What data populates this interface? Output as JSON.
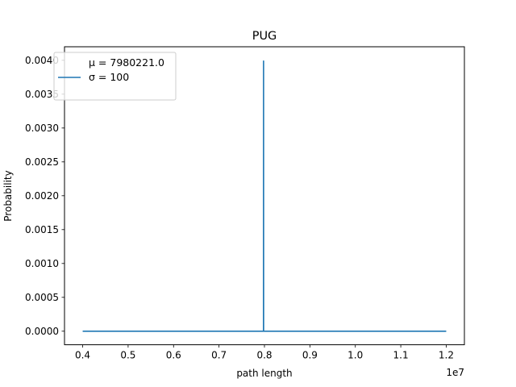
{
  "chart_data": {
    "type": "line",
    "title": "PUG",
    "xlabel": "path length",
    "ylabel": "Probability",
    "x_offset_label": "1e7",
    "xlim": [
      3600000,
      12400000
    ],
    "ylim": [
      -0.0002,
      0.0042
    ],
    "x_ticks": [
      {
        "value": 4000000,
        "label": "0.4"
      },
      {
        "value": 5000000,
        "label": "0.5"
      },
      {
        "value": 6000000,
        "label": "0.6"
      },
      {
        "value": 7000000,
        "label": "0.7"
      },
      {
        "value": 8000000,
        "label": "0.8"
      },
      {
        "value": 9000000,
        "label": "0.9"
      },
      {
        "value": 10000000,
        "label": "1.0"
      },
      {
        "value": 11000000,
        "label": "1.1"
      },
      {
        "value": 12000000,
        "label": "1.2"
      }
    ],
    "y_ticks": [
      {
        "value": 0.0,
        "label": "0.0000"
      },
      {
        "value": 0.0005,
        "label": "0.0005"
      },
      {
        "value": 0.001,
        "label": "0.0010"
      },
      {
        "value": 0.0015,
        "label": "0.0015"
      },
      {
        "value": 0.002,
        "label": "0.0020"
      },
      {
        "value": 0.0025,
        "label": "0.0025"
      },
      {
        "value": 0.003,
        "label": "0.0030"
      },
      {
        "value": 0.0035,
        "label": "0.0035"
      },
      {
        "value": 0.004,
        "label": "0.0040"
      }
    ],
    "grid": false,
    "legend_position": "upper-left",
    "legend_lines": [
      "μ = 7980221.0",
      "σ = 100"
    ],
    "series": [
      {
        "color": "#1f77b4",
        "x": [
          4000000,
          7979000,
          7980221,
          7981400,
          12000000
        ],
        "y": [
          0.0,
          0.0,
          0.00399,
          0.0,
          0.0
        ]
      }
    ]
  }
}
